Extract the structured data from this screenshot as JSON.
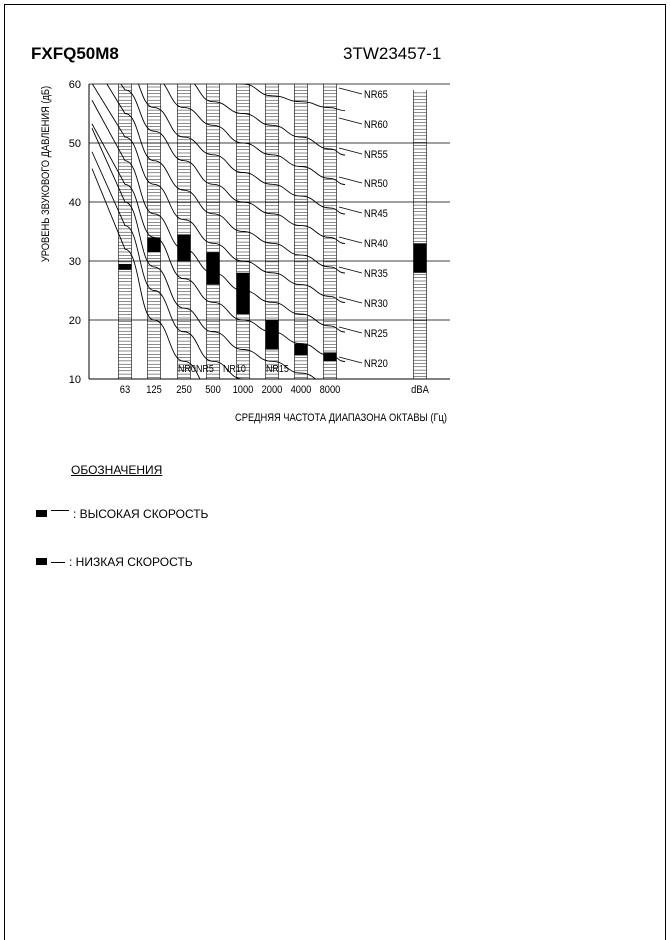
{
  "header": {
    "model": "FXFQ50M8",
    "doc_number": "3TW23457-1"
  },
  "chart_data": {
    "type": "bar",
    "title": "",
    "ylabel": "УРОВЕНЬ ЗВУКОВОГО ДАВЛЕНИЯ (дБ)",
    "xlabel": "СРЕДНЯЯ ЧАСТОТА ДИАПАЗОНА ОКТАВЫ (Гц)",
    "categories": [
      "63",
      "125",
      "250",
      "500",
      "1000",
      "2000",
      "4000",
      "8000",
      "dBA"
    ],
    "ylim": [
      10,
      60
    ],
    "yticks": [
      10,
      20,
      30,
      40,
      50,
      60
    ],
    "series": [
      {
        "name": "ВЫСОКАЯ СКОРОСТЬ",
        "values": [
          29.5,
          34,
          34.5,
          31.5,
          28,
          20,
          16,
          14.5,
          33
        ]
      },
      {
        "name": "НИЗКАЯ СКОРОСТЬ",
        "values": [
          28.5,
          31.5,
          30,
          26,
          21,
          15,
          14,
          13,
          28
        ]
      }
    ],
    "nr_curves": [
      {
        "label": "NR65",
        "values": [
          83,
          79,
          75,
          72,
          70,
          68,
          67,
          66
        ]
      },
      {
        "label": "NR60",
        "values": [
          79,
          74,
          70,
          67,
          65,
          63,
          62,
          61
        ]
      },
      {
        "label": "NR55",
        "values": [
          75,
          70,
          66,
          62,
          60,
          58,
          57,
          56
        ]
      },
      {
        "label": "NR50",
        "values": [
          71,
          65,
          61,
          57,
          55,
          53,
          51,
          49
        ]
      },
      {
        "label": "NR45",
        "values": [
          67,
          61,
          56,
          53,
          50,
          48,
          46,
          44
        ]
      },
      {
        "label": "NR40",
        "values": [
          63,
          56,
          51,
          48,
          45,
          43,
          41,
          39
        ]
      },
      {
        "label": "NR35",
        "values": [
          59,
          52,
          47,
          43,
          40,
          38,
          36,
          34
        ]
      },
      {
        "label": "NR30",
        "values": [
          55,
          47,
          42,
          38,
          35,
          33,
          31,
          29
        ]
      },
      {
        "label": "NR25",
        "values": [
          51,
          43,
          37,
          33,
          30,
          28,
          26,
          24
        ]
      },
      {
        "label": "NR20",
        "values": [
          47,
          38,
          32,
          28,
          25,
          23,
          21,
          19
        ]
      },
      {
        "label": "NR15",
        "values": [
          43,
          34,
          27,
          23,
          20,
          18,
          16,
          14
        ]
      },
      {
        "label": "NR10",
        "values": [
          40,
          29,
          22,
          18,
          15,
          13,
          11,
          9
        ]
      },
      {
        "label": "NR5",
        "values": [
          36,
          25,
          18,
          13,
          10,
          8,
          6,
          4
        ]
      },
      {
        "label": "NR0",
        "values": [
          32,
          20,
          13,
          8,
          5,
          3,
          1,
          0
        ]
      }
    ],
    "grid": true
  },
  "legend": {
    "title": "ОБОЗНАЧЕНИЯ",
    "high_label": ": ВЫСОКАЯ СКОРОСТЬ",
    "low_label": ": НИЗКАЯ СКОРОСТЬ"
  }
}
